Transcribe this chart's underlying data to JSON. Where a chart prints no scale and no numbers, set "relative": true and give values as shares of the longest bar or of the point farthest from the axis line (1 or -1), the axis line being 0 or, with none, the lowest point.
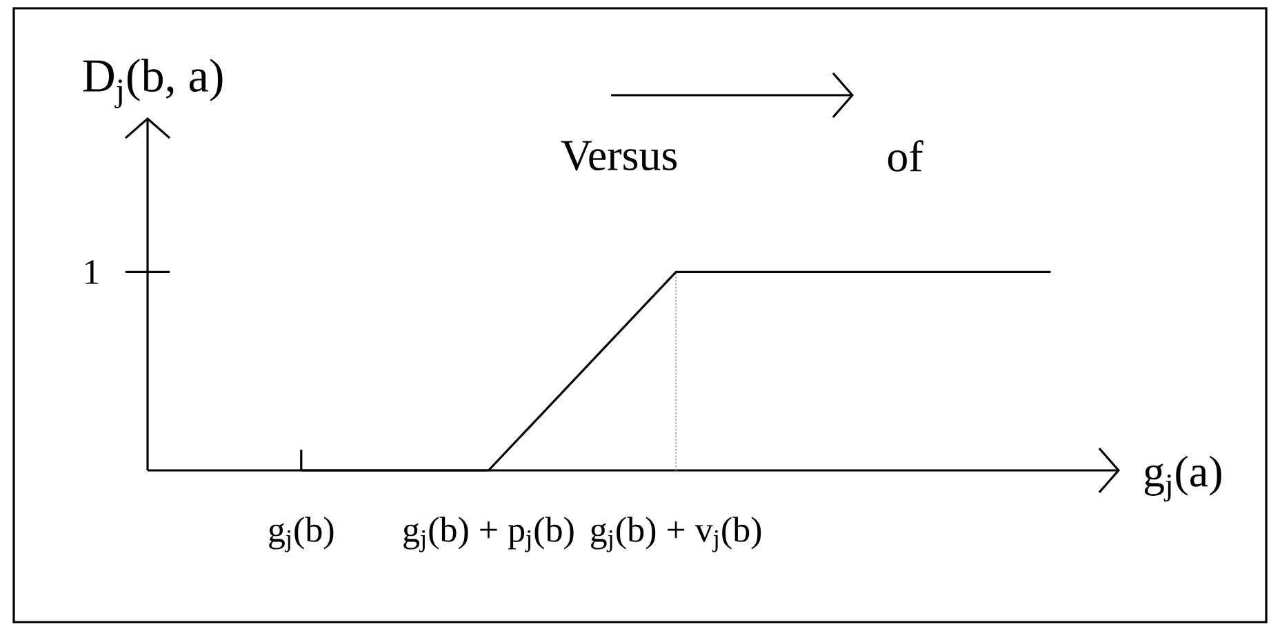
{
  "chart_data": {
    "type": "line",
    "relative": true,
    "xlabel": "g$_{j}$(a)",
    "ylabel": "D$_{j}$(b, a)",
    "annotations": [
      "1",
      "Versus",
      "of"
    ],
    "categories": [
      "g$_{j}$(b)",
      "g$_{j}$(b) + p$_{j}$(b)",
      "g$_{j}$(b) + v$_{j}$(b)",
      null,
      null
    ],
    "values": [
      0,
      0,
      1,
      1,
      1
    ],
    "color": "#000000",
    "ref_lines": [
      {
        "axis": "x",
        "value": "g$_{j}$(b) + v$_{j}$(b)",
        "color": "#a6a6a6",
        "line_style": "dotted"
      }
    ]
  }
}
